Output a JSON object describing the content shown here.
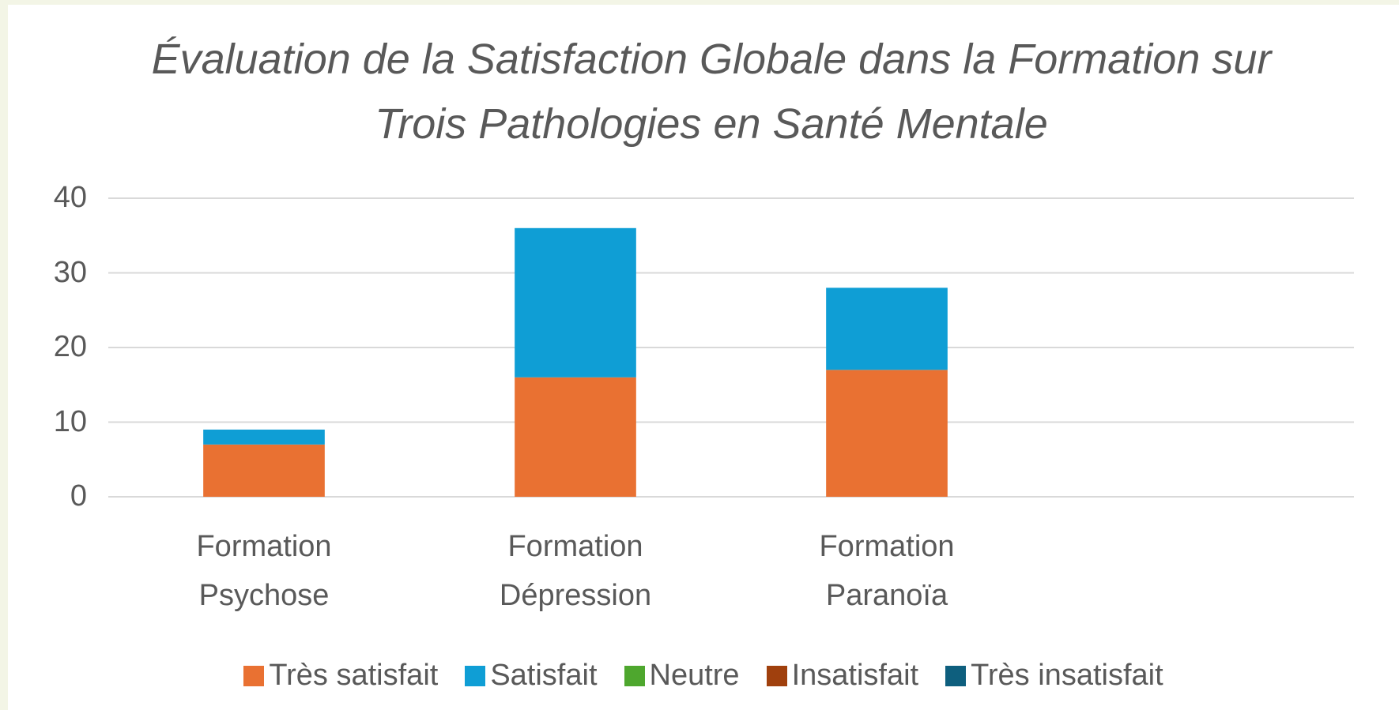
{
  "chart_data": {
    "type": "stacked_bar",
    "title": "Évaluation de la Satisfaction Globale dans la Formation sur Trois Pathologies en Santé Mentale",
    "categories": [
      "Formation Psychose",
      "Formation Dépression",
      "Formation Paranoïa",
      null
    ],
    "series": [
      {
        "name": "Très satisfait",
        "color": "#e97132",
        "values": [
          7,
          16,
          17,
          null
        ]
      },
      {
        "name": "Satisfait",
        "color": "#0f9ed5",
        "values": [
          2,
          20,
          11,
          null
        ]
      },
      {
        "name": "Neutre",
        "color": "#4ea72e",
        "values": [
          0,
          0,
          0,
          null
        ]
      },
      {
        "name": "Insatisfait",
        "color": "#a0400d",
        "values": [
          0,
          0,
          0,
          null
        ]
      },
      {
        "name": "Très insatisfait",
        "color": "#0e5f7e",
        "values": [
          0,
          0,
          0,
          null
        ]
      }
    ],
    "ylim": [
      0,
      40
    ],
    "yticks": [
      0,
      10,
      20,
      30,
      40
    ],
    "grid": true,
    "legend": "bottom"
  }
}
